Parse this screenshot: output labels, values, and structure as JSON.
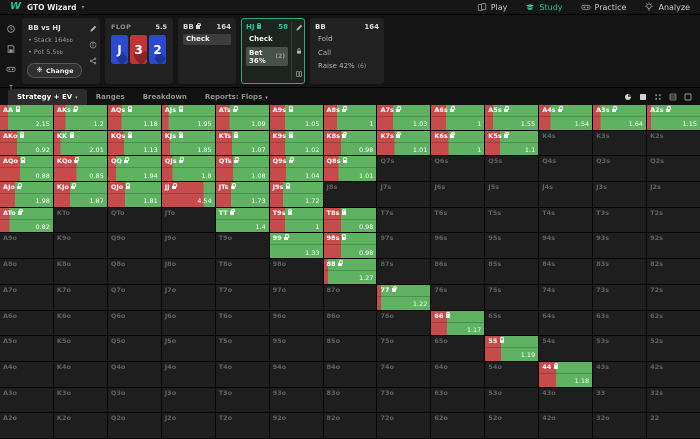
{
  "nav": {
    "logo": "W",
    "title": "GTO Wizard",
    "chevron": "▾",
    "items": [
      {
        "label": "Play",
        "icon": "cards",
        "active": false
      },
      {
        "label": "Study",
        "icon": "gradcap",
        "active": true
      },
      {
        "label": "Practice",
        "icon": "gamepad",
        "active": false
      },
      {
        "label": "Analyze",
        "icon": "bulb",
        "active": false
      }
    ]
  },
  "sidebar": {
    "icons": [
      "history-icon",
      "saved-icon",
      "gamepad-icon",
      "ibeam-icon"
    ]
  },
  "match": {
    "title": "BB vs HJ",
    "lines": [
      {
        "label": "Stack",
        "value": "164",
        "unit": "bb"
      },
      {
        "label": "Pot",
        "value": "5.5",
        "unit": "bb"
      }
    ],
    "change_label": "Change",
    "rail_icons": [
      "pencil-icon",
      "info-icon",
      "share-icon"
    ]
  },
  "flop": {
    "label": "FLOP",
    "pot": "5.5",
    "cards": [
      {
        "rank": "J",
        "suit": "♦",
        "color": "blue"
      },
      {
        "rank": "3",
        "suit": "♥",
        "color": "red"
      },
      {
        "rank": "2",
        "suit": "♦",
        "color": "blue"
      }
    ]
  },
  "nodes": [
    {
      "player": "BB",
      "stack": "164",
      "locked": true,
      "selected": false,
      "rail_icons": [],
      "actions": [
        {
          "label": "Check",
          "bg": true,
          "muted": false,
          "suffix": ""
        }
      ]
    },
    {
      "player": "HJ",
      "stack": "58",
      "locked": true,
      "selected": true,
      "rail_icons": [
        "pencil-icon",
        "lock-icon",
        "range-cards-icon"
      ],
      "actions": [
        {
          "label": "Check",
          "bg": false,
          "muted": false,
          "suffix": ""
        },
        {
          "label": "Bet 36%",
          "bg": true,
          "muted": false,
          "suffix": "(2)"
        }
      ]
    },
    {
      "player": "BB",
      "stack": "164",
      "locked": false,
      "selected": false,
      "rail_icons": [],
      "actions": [
        {
          "label": "Fold",
          "bg": false,
          "muted": true,
          "suffix": ""
        },
        {
          "label": "Call",
          "bg": false,
          "muted": true,
          "suffix": ""
        },
        {
          "label": "Raise 42%",
          "bg": false,
          "muted": true,
          "suffix": "(6)"
        }
      ]
    }
  ],
  "toolbar": {
    "tabs": [
      {
        "label": "Strategy + EV",
        "chevron": "▾",
        "active": true
      },
      {
        "label": "Ranges",
        "chevron": "",
        "active": false
      },
      {
        "label": "Breakdown",
        "chevron": "",
        "active": false
      },
      {
        "label": "Reports: Flops",
        "chevron": "▾",
        "active": false
      }
    ],
    "view_icons": [
      "pie-icon",
      "square-filled-icon",
      "dot-grid-icon",
      "square-lines-icon",
      "square-outline-icon"
    ]
  },
  "grid": {
    "colors": {
      "bet": "#c84b4b",
      "check": "#5fb261",
      "folded": "#1e1e1e"
    },
    "legend": {
      "bet_color_means": "Bet",
      "check_color_means": "Check"
    },
    "rows": [
      [
        [
          "AA",
          "2.15",
          15
        ],
        [
          "AKs",
          "1.2",
          22
        ],
        [
          "AQs",
          "1.18",
          25
        ],
        [
          "AJs",
          "1.95",
          12
        ],
        [
          "ATs",
          "1.09",
          25
        ],
        [
          "A9s",
          "1.05",
          28
        ],
        [
          "A8s",
          "1",
          25
        ],
        [
          "A7s",
          "1.03",
          30
        ],
        [
          "A6s",
          "1",
          28
        ],
        [
          "A5s",
          "1.55",
          15
        ],
        [
          "A4s",
          "1.54",
          22
        ],
        [
          "A3s",
          "1.64",
          14
        ],
        [
          "A2s",
          "1.15",
          8
        ]
      ],
      [
        [
          "AKo",
          "0.92",
          32
        ],
        [
          "KK",
          "2.01",
          12
        ],
        [
          "KQs",
          "1.13",
          30
        ],
        [
          "KJs",
          "1.85",
          15
        ],
        [
          "KTs",
          "1.07",
          30
        ],
        [
          "K9s",
          "1.02",
          28
        ],
        [
          "K8s",
          "0.98",
          33
        ],
        [
          "K7s",
          "1.01",
          33
        ],
        [
          "K6s",
          "1",
          33
        ],
        [
          "K5s",
          "1.1",
          28
        ],
        [
          "K4s",
          null,
          null
        ],
        [
          "K3s",
          null,
          null
        ],
        [
          "K2s",
          null,
          null
        ]
      ],
      [
        [
          "AQo",
          "0.88",
          38
        ],
        [
          "KQo",
          "0.85",
          42
        ],
        [
          "QQ",
          "1.94",
          15
        ],
        [
          "QJs",
          "1.8",
          20
        ],
        [
          "QTs",
          "1.08",
          32
        ],
        [
          "Q9s",
          "1.04",
          30
        ],
        [
          "Q8s",
          "1.01",
          28
        ],
        [
          "Q7s",
          null,
          null
        ],
        [
          "Q6s",
          null,
          null
        ],
        [
          "Q5s",
          null,
          null
        ],
        [
          "Q4s",
          null,
          null
        ],
        [
          "Q3s",
          null,
          null
        ],
        [
          "Q2s",
          null,
          null
        ]
      ],
      [
        [
          "AJo",
          "1.98",
          28
        ],
        [
          "KJo",
          "1.87",
          30
        ],
        [
          "QJo",
          "1.81",
          32
        ],
        [
          "JJ",
          "4.54",
          78
        ],
        [
          "JTs",
          "1.73",
          28
        ],
        [
          "J9s",
          "1.72",
          25
        ],
        [
          "J8s",
          null,
          null
        ],
        [
          "J7s",
          null,
          null
        ],
        [
          "J6s",
          null,
          null
        ],
        [
          "J5s",
          null,
          null
        ],
        [
          "J4s",
          null,
          null
        ],
        [
          "J3s",
          null,
          null
        ],
        [
          "J2s",
          null,
          null
        ]
      ],
      [
        [
          "ATo",
          "0.82",
          18
        ],
        [
          "KTo",
          null,
          null
        ],
        [
          "QTo",
          null,
          null
        ],
        [
          "JTo",
          null,
          null
        ],
        [
          "TT",
          "1.4",
          0
        ],
        [
          "T9s",
          "1",
          28
        ],
        [
          "T8s",
          "0.98",
          33
        ],
        [
          "T7s",
          null,
          null
        ],
        [
          "T6s",
          null,
          null
        ],
        [
          "T5s",
          null,
          null
        ],
        [
          "T4s",
          null,
          null
        ],
        [
          "T3s",
          null,
          null
        ],
        [
          "T2s",
          null,
          null
        ]
      ],
      [
        [
          "A9o",
          null,
          null
        ],
        [
          "K9o",
          null,
          null
        ],
        [
          "Q9o",
          null,
          null
        ],
        [
          "J9o",
          null,
          null
        ],
        [
          "T9o",
          null,
          null
        ],
        [
          "99",
          "1.33",
          0
        ],
        [
          "98s",
          "0.98",
          33
        ],
        [
          "97s",
          null,
          null
        ],
        [
          "96s",
          null,
          null
        ],
        [
          "95s",
          null,
          null
        ],
        [
          "94s",
          null,
          null
        ],
        [
          "93s",
          null,
          null
        ],
        [
          "92s",
          null,
          null
        ]
      ],
      [
        [
          "A8o",
          null,
          null
        ],
        [
          "K8o",
          null,
          null
        ],
        [
          "Q8o",
          null,
          null
        ],
        [
          "J8o",
          null,
          null
        ],
        [
          "T8o",
          null,
          null
        ],
        [
          "98o",
          null,
          null
        ],
        [
          "88",
          "1.27",
          8
        ],
        [
          "87s",
          null,
          null
        ],
        [
          "86s",
          null,
          null
        ],
        [
          "85s",
          null,
          null
        ],
        [
          "84s",
          null,
          null
        ],
        [
          "83s",
          null,
          null
        ],
        [
          "82s",
          null,
          null
        ]
      ],
      [
        [
          "A7o",
          null,
          null
        ],
        [
          "K7o",
          null,
          null
        ],
        [
          "Q7o",
          null,
          null
        ],
        [
          "J7o",
          null,
          null
        ],
        [
          "T7o",
          null,
          null
        ],
        [
          "97o",
          null,
          null
        ],
        [
          "87o",
          null,
          null
        ],
        [
          "77",
          "1.22",
          8
        ],
        [
          "76s",
          null,
          null
        ],
        [
          "75s",
          null,
          null
        ],
        [
          "74s",
          null,
          null
        ],
        [
          "73s",
          null,
          null
        ],
        [
          "72s",
          null,
          null
        ]
      ],
      [
        [
          "A6o",
          null,
          null
        ],
        [
          "K6o",
          null,
          null
        ],
        [
          "Q6o",
          null,
          null
        ],
        [
          "J6o",
          null,
          null
        ],
        [
          "T6o",
          null,
          null
        ],
        [
          "96o",
          null,
          null
        ],
        [
          "86o",
          null,
          null
        ],
        [
          "76o",
          null,
          null
        ],
        [
          "66",
          "1.17",
          30
        ],
        [
          "65s",
          null,
          null
        ],
        [
          "64s",
          null,
          null
        ],
        [
          "63s",
          null,
          null
        ],
        [
          "62s",
          null,
          null
        ]
      ],
      [
        [
          "A5o",
          null,
          null
        ],
        [
          "K5o",
          null,
          null
        ],
        [
          "Q5o",
          null,
          null
        ],
        [
          "J5o",
          null,
          null
        ],
        [
          "T5o",
          null,
          null
        ],
        [
          "95o",
          null,
          null
        ],
        [
          "85o",
          null,
          null
        ],
        [
          "75o",
          null,
          null
        ],
        [
          "65o",
          null,
          null
        ],
        [
          "55",
          "1.19",
          30
        ],
        [
          "54s",
          null,
          null
        ],
        [
          "53s",
          null,
          null
        ],
        [
          "52s",
          null,
          null
        ]
      ],
      [
        [
          "A4o",
          null,
          null
        ],
        [
          "K4o",
          null,
          null
        ],
        [
          "Q4o",
          null,
          null
        ],
        [
          "J4o",
          null,
          null
        ],
        [
          "T4o",
          null,
          null
        ],
        [
          "94o",
          null,
          null
        ],
        [
          "84o",
          null,
          null
        ],
        [
          "74o",
          null,
          null
        ],
        [
          "64o",
          null,
          null
        ],
        [
          "54o",
          null,
          null
        ],
        [
          "44",
          "1.18",
          32
        ],
        [
          "43s",
          null,
          null
        ],
        [
          "42s",
          null,
          null
        ]
      ],
      [
        [
          "A3o",
          null,
          null
        ],
        [
          "K3o",
          null,
          null
        ],
        [
          "Q3o",
          null,
          null
        ],
        [
          "J3o",
          null,
          null
        ],
        [
          "T3o",
          null,
          null
        ],
        [
          "93o",
          null,
          null
        ],
        [
          "83o",
          null,
          null
        ],
        [
          "73o",
          null,
          null
        ],
        [
          "63o",
          null,
          null
        ],
        [
          "53o",
          null,
          null
        ],
        [
          "43o",
          null,
          null
        ],
        [
          "33",
          null,
          null
        ],
        [
          "32s",
          null,
          null
        ]
      ],
      [
        [
          "A2o",
          null,
          null
        ],
        [
          "K2o",
          null,
          null
        ],
        [
          "Q2o",
          null,
          null
        ],
        [
          "J2o",
          null,
          null
        ],
        [
          "T2o",
          null,
          null
        ],
        [
          "92o",
          null,
          null
        ],
        [
          "82o",
          null,
          null
        ],
        [
          "72o",
          null,
          null
        ],
        [
          "62o",
          null,
          null
        ],
        [
          "52o",
          null,
          null
        ],
        [
          "42o",
          null,
          null
        ],
        [
          "32o",
          null,
          null
        ],
        [
          "22",
          null,
          null
        ]
      ]
    ]
  }
}
